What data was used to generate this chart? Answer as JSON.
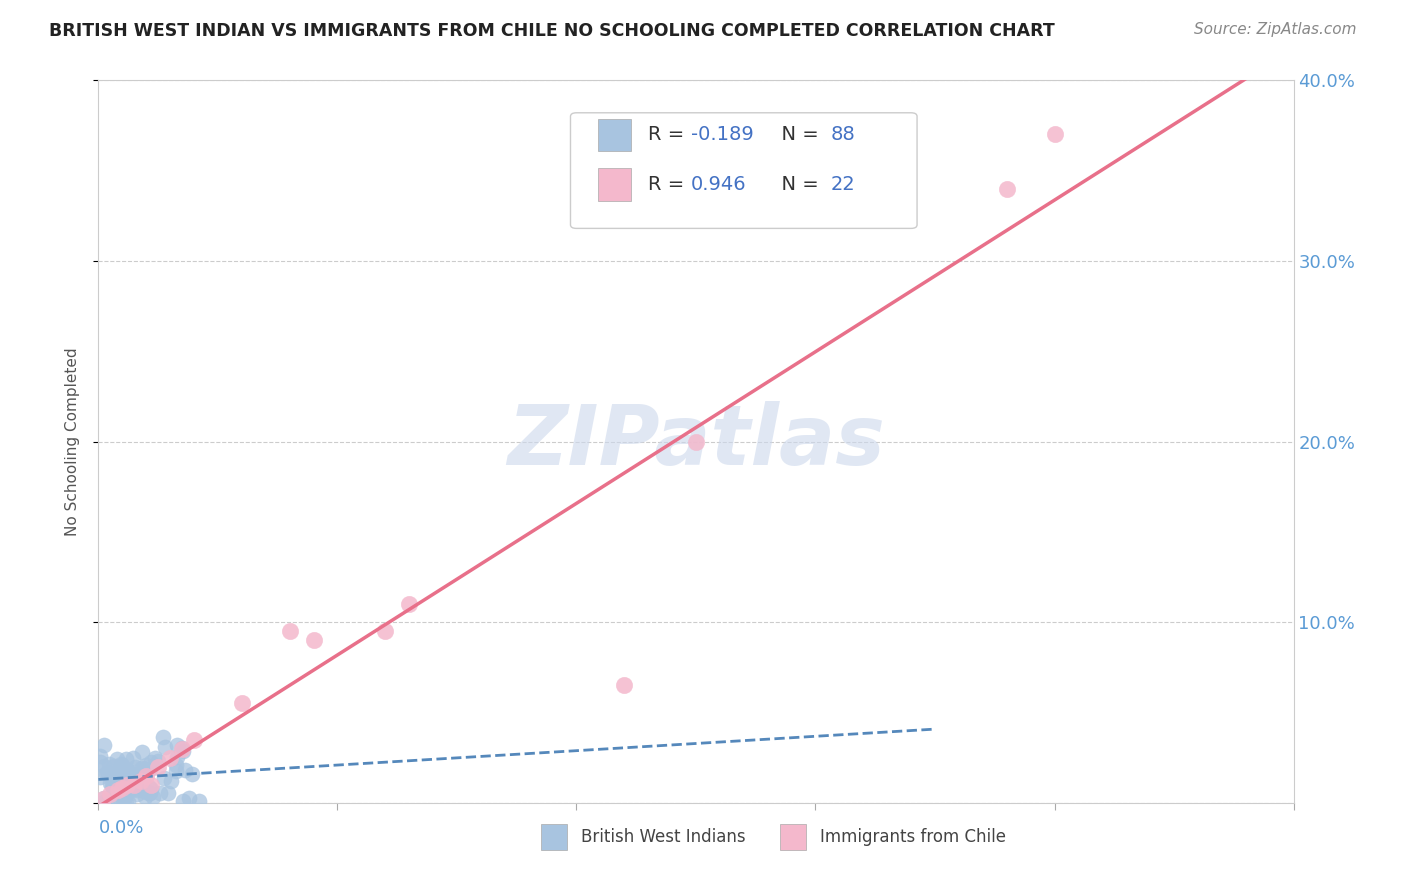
{
  "title": "BRITISH WEST INDIAN VS IMMIGRANTS FROM CHILE NO SCHOOLING COMPLETED CORRELATION CHART",
  "source": "Source: ZipAtlas.com",
  "ylabel_label": "No Schooling Completed",
  "xmin": 0.0,
  "xmax": 0.5,
  "ymin": 0.0,
  "ymax": 0.4,
  "yticks": [
    0.0,
    0.1,
    0.2,
    0.3,
    0.4
  ],
  "ytick_labels": [
    "",
    "10.0%",
    "20.0%",
    "30.0%",
    "40.0%"
  ],
  "xticks": [
    0.0,
    0.1,
    0.2,
    0.3,
    0.4,
    0.5
  ],
  "blue_R": -0.189,
  "blue_N": 88,
  "pink_R": 0.946,
  "pink_N": 22,
  "blue_color": "#a8c4e0",
  "pink_color": "#f4b8cc",
  "blue_line_color": "#5588bb",
  "pink_line_color": "#e8708a",
  "legend_blue_label": "British West Indians",
  "legend_pink_label": "Immigrants from Chile",
  "watermark_text": "ZIPatlas",
  "bg_color": "#ffffff",
  "grid_color": "#cccccc",
  "axis_label_color": "#5b9bd5",
  "text_color": "#444444"
}
